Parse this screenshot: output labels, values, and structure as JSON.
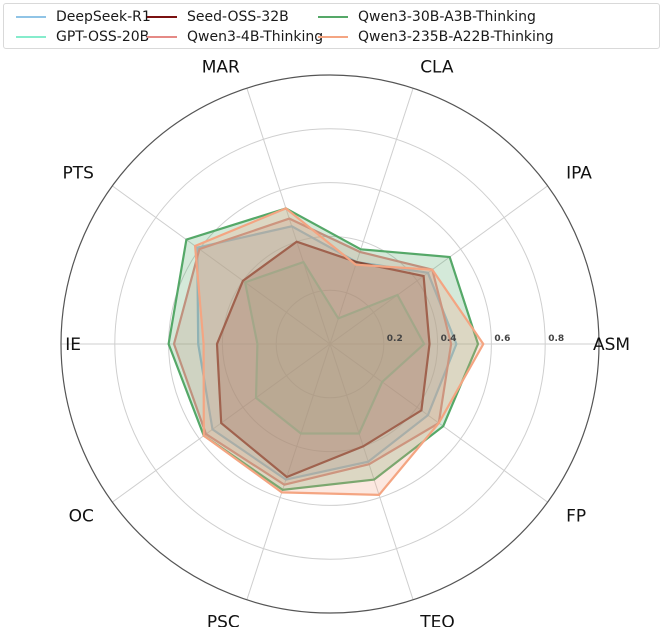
{
  "chart_data": {
    "type": "radar",
    "title": "",
    "axes": [
      "ASM",
      "IPA",
      "CLA",
      "MAR",
      "PTS",
      "IE",
      "OC",
      "PSC",
      "TEO",
      "FP"
    ],
    "radial_ticks": [
      0.2,
      0.4,
      0.6,
      0.8
    ],
    "radial_tick_labels": [
      "0.2",
      "0.4",
      "0.6",
      "0.8"
    ],
    "rlim": [
      0,
      1.0
    ],
    "grid": true,
    "legend_position": "top",
    "series": [
      {
        "name": "DeepSeek-R1",
        "color": "#90c4e6",
        "values": [
          0.47,
          0.45,
          0.32,
          0.46,
          0.61,
          0.49,
          0.54,
          0.53,
          0.46,
          0.45
        ]
      },
      {
        "name": "GPT-OSS-20B",
        "color": "#86eccc",
        "values": [
          0.35,
          0.31,
          0.1,
          0.32,
          0.39,
          0.27,
          0.34,
          0.35,
          0.35,
          0.24
        ]
      },
      {
        "name": "Seed-OSS-32B",
        "color": "#7a1010",
        "values": [
          0.37,
          0.43,
          0.32,
          0.4,
          0.4,
          0.42,
          0.5,
          0.52,
          0.4,
          0.42
        ]
      },
      {
        "name": "Qwen3-4B-Thinking",
        "color": "#e58a86",
        "values": [
          0.45,
          0.47,
          0.36,
          0.49,
          0.6,
          0.58,
          0.57,
          0.55,
          0.47,
          0.5
        ]
      },
      {
        "name": "Qwen3-30B-A3B-Thinking",
        "color": "#55a868",
        "values": [
          0.55,
          0.55,
          0.37,
          0.53,
          0.66,
          0.6,
          0.58,
          0.57,
          0.53,
          0.52
        ]
      },
      {
        "name": "Qwen3-235B-A22B-Thinking",
        "color": "#f4a582",
        "values": [
          0.57,
          0.47,
          0.31,
          0.53,
          0.62,
          0.47,
          0.58,
          0.58,
          0.59,
          0.5
        ]
      }
    ]
  },
  "legend": {
    "items": [
      {
        "label": "DeepSeek-R1",
        "color": "#90c4e6"
      },
      {
        "label": "GPT-OSS-20B",
        "color": "#86eccc"
      },
      {
        "label": "Seed-OSS-32B",
        "color": "#7a1010"
      },
      {
        "label": "Qwen3-4B-Thinking",
        "color": "#e58a86"
      },
      {
        "label": "Qwen3-30B-A3B-Thinking",
        "color": "#55a868"
      },
      {
        "label": "Qwen3-235B-A22B-Thinking",
        "color": "#f4a582"
      }
    ]
  }
}
